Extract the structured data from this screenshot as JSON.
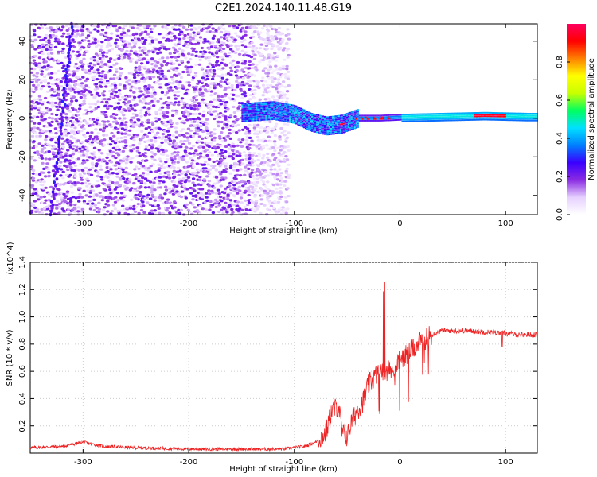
{
  "title": "C2E1.2024.140.11.48.G19",
  "chart_data": [
    {
      "type": "heatmap",
      "title": "C2E1.2024.140.11.48.G19",
      "xlabel": "Height of straight line (km)",
      "ylabel": "Frequency (Hz)",
      "xlim": [
        -350,
        130
      ],
      "ylim": [
        -50,
        49
      ],
      "x_ticks": [
        -300,
        -200,
        -100,
        0,
        100
      ],
      "y_ticks": [
        -40,
        -20,
        0,
        20,
        40
      ],
      "colorbar": {
        "label": "Normalized spectral amplitude",
        "range": [
          0.0,
          1.0
        ],
        "ticks": [
          0.0,
          0.2,
          0.4,
          0.6,
          0.8
        ],
        "colors": [
          "#ffffff",
          "#e6d0ff",
          "#8a2be2",
          "#3a00ff",
          "#0080ff",
          "#00e0ff",
          "#00ff60",
          "#c8ff00",
          "#ffff00",
          "#ff8000",
          "#ff0000",
          "#ff0060"
        ]
      },
      "features": {
        "noise_region_x": [
          -350,
          -105
        ],
        "signal_line_x": [
          -150,
          130
        ],
        "signal_center_freq": [
          [
            -150,
            3
          ],
          [
            -120,
            4
          ],
          [
            -100,
            2
          ],
          [
            -85,
            -2
          ],
          [
            -70,
            -4
          ],
          [
            -55,
            -3
          ],
          [
            -40,
            0
          ],
          [
            -20,
            0
          ],
          [
            0,
            0.5
          ],
          [
            40,
            1
          ],
          [
            80,
            1.5
          ],
          [
            120,
            1
          ]
        ]
      },
      "grid": true
    },
    {
      "type": "line",
      "xlabel": "Height of straight line (km)",
      "ylabel": "SNR (10 * v/v)",
      "y_multiplier": "(x10^4)",
      "xlim": [
        -350,
        130
      ],
      "ylim": [
        0,
        1.4
      ],
      "x_ticks": [
        -300,
        -200,
        -100,
        0,
        100
      ],
      "y_ticks": [
        0.2,
        0.4,
        0.6,
        0.8,
        1.0,
        1.2,
        1.4
      ],
      "series_color": "#ee2222",
      "series": [
        {
          "x": [
            -350,
            -320,
            -300,
            -280,
            -250,
            -200,
            -150,
            -110,
            -100,
            -90,
            -80,
            -70,
            -65,
            -58,
            -55,
            -50,
            -45,
            -40,
            -35,
            -30,
            -25,
            -20,
            -15,
            -10,
            -5,
            0,
            10,
            20,
            30,
            40,
            60,
            80,
            100,
            110,
            130
          ],
          "y": [
            0.04,
            0.05,
            0.08,
            0.05,
            0.04,
            0.03,
            0.03,
            0.03,
            0.04,
            0.05,
            0.08,
            0.15,
            0.3,
            0.35,
            0.15,
            0.12,
            0.25,
            0.32,
            0.38,
            0.5,
            0.55,
            0.6,
            0.62,
            0.6,
            0.62,
            0.68,
            0.75,
            0.82,
            0.87,
            0.9,
            0.9,
            0.89,
            0.88,
            0.87,
            0.87
          ]
        }
      ],
      "grid": true
    }
  ]
}
